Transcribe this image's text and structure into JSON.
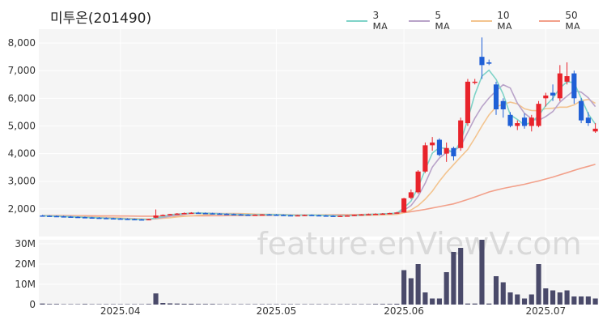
{
  "title": "미투온(201490)",
  "watermark": "feature.enViewV.com",
  "colors": {
    "up": "#e8232b",
    "down": "#1f5fd6",
    "ma3": "#7fd3c8",
    "ma5": "#b9a3c9",
    "ma10": "#f3c48f",
    "ma50": "#f2a08a",
    "volume": "#4a4a6a"
  },
  "chart_data": {
    "type": "candlestick",
    "title": "미투온(201490)",
    "legend": [
      "3 MA",
      "5 MA",
      "10 MA",
      "50 MA"
    ],
    "legend_position": "top-right",
    "price_ylim": [
      1000,
      8500
    ],
    "price_ticks": [
      "2,000",
      "3,000",
      "4,000",
      "5,000",
      "6,000",
      "7,000",
      "8,000"
    ],
    "price_tick_values": [
      2000,
      3000,
      4000,
      5000,
      6000,
      7000,
      8000
    ],
    "volume_ylim": [
      0,
      32
    ],
    "volume_ticks": [
      "0",
      "10M",
      "20M",
      "30M"
    ],
    "volume_tick_values": [
      0,
      10,
      20,
      30
    ],
    "x_ticks": [
      "2025.04",
      "2025.05",
      "2025.06",
      "2025.07"
    ],
    "x_tick_index": [
      11,
      33,
      51,
      71
    ],
    "candles": [
      [
        1760,
        1780,
        1740,
        1750
      ],
      [
        1750,
        1770,
        1730,
        1740
      ],
      [
        1740,
        1760,
        1720,
        1730
      ],
      [
        1730,
        1750,
        1710,
        1720
      ],
      [
        1720,
        1740,
        1700,
        1710
      ],
      [
        1710,
        1730,
        1690,
        1700
      ],
      [
        1700,
        1720,
        1680,
        1690
      ],
      [
        1690,
        1710,
        1670,
        1680
      ],
      [
        1680,
        1700,
        1660,
        1670
      ],
      [
        1670,
        1690,
        1650,
        1660
      ],
      [
        1660,
        1680,
        1640,
        1650
      ],
      [
        1650,
        1670,
        1630,
        1640
      ],
      [
        1640,
        1660,
        1620,
        1630
      ],
      [
        1630,
        1650,
        1610,
        1620
      ],
      [
        1620,
        1640,
        1600,
        1610
      ],
      [
        1610,
        1640,
        1600,
        1630
      ],
      [
        1680,
        1980,
        1660,
        1760
      ],
      [
        1760,
        1800,
        1740,
        1780
      ],
      [
        1780,
        1820,
        1760,
        1810
      ],
      [
        1810,
        1850,
        1790,
        1830
      ],
      [
        1830,
        1870,
        1810,
        1850
      ],
      [
        1850,
        1880,
        1830,
        1860
      ],
      [
        1860,
        1890,
        1840,
        1850
      ],
      [
        1850,
        1870,
        1830,
        1840
      ],
      [
        1840,
        1860,
        1820,
        1830
      ],
      [
        1830,
        1850,
        1810,
        1820
      ],
      [
        1820,
        1840,
        1800,
        1810
      ],
      [
        1810,
        1830,
        1790,
        1800
      ],
      [
        1800,
        1820,
        1780,
        1790
      ],
      [
        1790,
        1810,
        1770,
        1780
      ],
      [
        1780,
        1800,
        1760,
        1790
      ],
      [
        1790,
        1810,
        1770,
        1800
      ],
      [
        1800,
        1820,
        1780,
        1790
      ],
      [
        1790,
        1810,
        1770,
        1780
      ],
      [
        1780,
        1800,
        1760,
        1770
      ],
      [
        1770,
        1790,
        1750,
        1760
      ],
      [
        1760,
        1780,
        1740,
        1770
      ],
      [
        1770,
        1790,
        1750,
        1780
      ],
      [
        1780,
        1800,
        1760,
        1770
      ],
      [
        1770,
        1790,
        1750,
        1760
      ],
      [
        1760,
        1780,
        1740,
        1750
      ],
      [
        1750,
        1770,
        1730,
        1740
      ],
      [
        1740,
        1760,
        1720,
        1750
      ],
      [
        1750,
        1770,
        1730,
        1760
      ],
      [
        1760,
        1790,
        1740,
        1780
      ],
      [
        1780,
        1810,
        1760,
        1800
      ],
      [
        1800,
        1830,
        1780,
        1810
      ],
      [
        1810,
        1840,
        1790,
        1820
      ],
      [
        1820,
        1850,
        1800,
        1830
      ],
      [
        1830,
        1860,
        1810,
        1850
      ],
      [
        1850,
        1890,
        1830,
        1870
      ],
      [
        1870,
        2400,
        1860,
        2380
      ],
      [
        2400,
        2700,
        2350,
        2600
      ],
      [
        2600,
        3400,
        2550,
        3350
      ],
      [
        3350,
        4400,
        3300,
        4300
      ],
      [
        4300,
        4600,
        4100,
        4400
      ],
      [
        4500,
        4550,
        3900,
        3950
      ],
      [
        4000,
        4400,
        3700,
        4200
      ],
      [
        4200,
        4250,
        3750,
        3900
      ],
      [
        4200,
        5300,
        4100,
        5200
      ],
      [
        5100,
        6700,
        5000,
        6600
      ],
      [
        6600,
        6700,
        6500,
        6600
      ],
      [
        7500,
        8200,
        6700,
        7200
      ],
      [
        7300,
        7400,
        7200,
        7250
      ],
      [
        6500,
        6600,
        5400,
        5600
      ],
      [
        5900,
        6000,
        5300,
        5600
      ],
      [
        5400,
        5500,
        4950,
        5000
      ],
      [
        5000,
        5200,
        4850,
        5100
      ],
      [
        5300,
        5450,
        4900,
        5000
      ],
      [
        5000,
        5400,
        4800,
        5300
      ],
      [
        5000,
        5900,
        4950,
        5800
      ],
      [
        6000,
        6200,
        5700,
        6100
      ],
      [
        6200,
        6500,
        5900,
        6100
      ],
      [
        6000,
        7200,
        5900,
        6900
      ],
      [
        6600,
        7300,
        6500,
        6800
      ],
      [
        6900,
        7000,
        5800,
        6000
      ],
      [
        5900,
        6000,
        5100,
        5200
      ],
      [
        5300,
        5500,
        5000,
        5100
      ],
      [
        4800,
        5100,
        4750,
        4900
      ]
    ],
    "ma3": [
      1750,
      1740,
      1730,
      1720,
      1710,
      1700,
      1690,
      1680,
      1670,
      1660,
      1650,
      1640,
      1630,
      1620,
      1610,
      1620,
      1670,
      1720,
      1790,
      1810,
      1830,
      1850,
      1850,
      1840,
      1830,
      1820,
      1810,
      1800,
      1790,
      1785,
      1790,
      1795,
      1795,
      1790,
      1780,
      1770,
      1768,
      1773,
      1773,
      1770,
      1760,
      1750,
      1746,
      1750,
      1763,
      1780,
      1797,
      1810,
      1820,
      1833,
      1850,
      2033,
      2283,
      2777,
      3417,
      4017,
      4217,
      4183,
      4017,
      4433,
      5233,
      6133,
      6800,
      7017,
      6683,
      6150,
      5400,
      5233,
      5033,
      5133,
      5367,
      5733,
      6000,
      6367,
      6600,
      6567,
      6000,
      5433,
      5067
    ],
    "ma5": [
      1750,
      1745,
      1740,
      1735,
      1730,
      1710,
      1700,
      1690,
      1680,
      1670,
      1660,
      1650,
      1640,
      1630,
      1620,
      1620,
      1652,
      1690,
      1730,
      1778,
      1810,
      1836,
      1847,
      1846,
      1842,
      1832,
      1822,
      1812,
      1802,
      1792,
      1790,
      1790,
      1792,
      1794,
      1790,
      1780,
      1774,
      1772,
      1770,
      1768,
      1766,
      1760,
      1754,
      1752,
      1758,
      1774,
      1788,
      1802,
      1814,
      1826,
      1840,
      1950,
      2120,
      2450,
      2930,
      3510,
      3840,
      4040,
      4100,
      4270,
      4770,
      5280,
      5700,
      6010,
      6270,
      6490,
      6370,
      5820,
      5460,
      5260,
      5200,
      5340,
      5520,
      5860,
      6080,
      6280,
      6220,
      6020,
      5700
    ],
    "ma10": [
      1750,
      1748,
      1746,
      1744,
      1740,
      1730,
      1720,
      1710,
      1700,
      1690,
      1680,
      1670,
      1660,
      1650,
      1640,
      1630,
      1640,
      1660,
      1680,
      1710,
      1730,
      1750,
      1770,
      1790,
      1810,
      1830,
      1836,
      1836,
      1830,
      1822,
      1812,
      1806,
      1802,
      1800,
      1796,
      1788,
      1782,
      1780,
      1780,
      1778,
      1776,
      1770,
      1764,
      1762,
      1762,
      1766,
      1770,
      1776,
      1784,
      1790,
      1800,
      1860,
      1960,
      2120,
      2350,
      2640,
      3000,
      3320,
      3600,
      3880,
      4150,
      4560,
      5000,
      5400,
      5690,
      5780,
      5860,
      5800,
      5620,
      5560,
      5550,
      5630,
      5640,
      5680,
      5680,
      5760,
      5910,
      5960,
      5820
    ],
    "ma50": [
      1760,
      1760,
      1760,
      1758,
      1756,
      1754,
      1752,
      1750,
      1748,
      1746,
      1744,
      1742,
      1740,
      1738,
      1736,
      1734,
      1736,
      1738,
      1740,
      1742,
      1744,
      1746,
      1748,
      1750,
      1752,
      1754,
      1756,
      1758,
      1760,
      1762,
      1764,
      1766,
      1768,
      1770,
      1772,
      1774,
      1776,
      1778,
      1780,
      1782,
      1784,
      1786,
      1788,
      1790,
      1794,
      1798,
      1802,
      1808,
      1814,
      1820,
      1830,
      1860,
      1900,
      1940,
      1980,
      2030,
      2080,
      2130,
      2180,
      2260,
      2340,
      2430,
      2520,
      2610,
      2680,
      2740,
      2790,
      2840,
      2890,
      2950,
      3010,
      3080,
      3150,
      3230,
      3310,
      3390,
      3470,
      3540,
      3610
    ],
    "volume": [
      0.5,
      0.3,
      0.3,
      0.2,
      0.2,
      0.2,
      0.3,
      0.2,
      0.2,
      0.2,
      0.2,
      0.2,
      0.2,
      0.2,
      0.2,
      0.3,
      5.5,
      0.8,
      0.6,
      0.5,
      0.4,
      0.4,
      0.3,
      0.3,
      0.3,
      0.2,
      0.2,
      0.2,
      0.2,
      0.2,
      0.2,
      0.2,
      0.2,
      0.2,
      0.2,
      0.2,
      0.2,
      0.2,
      0.2,
      0.2,
      0.2,
      0.2,
      0.2,
      0.2,
      0.2,
      0.2,
      0.2,
      0.3,
      0.3,
      0.3,
      0.4,
      17,
      13,
      20,
      6,
      3,
      3,
      16,
      26,
      28,
      0.5,
      0.5,
      32,
      0.5,
      14,
      11,
      6,
      5,
      3,
      5,
      20,
      8,
      7,
      6,
      7,
      4,
      4,
      4,
      3
    ]
  }
}
